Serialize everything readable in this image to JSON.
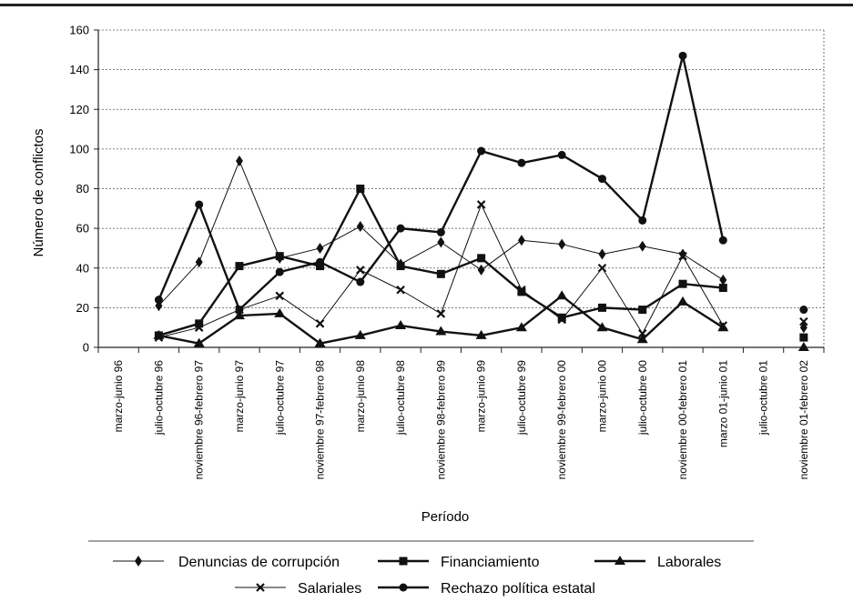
{
  "chart_data": {
    "type": "line",
    "title": "",
    "xlabel": "Período",
    "ylabel": "Número de conflictos",
    "ylim": [
      0,
      160
    ],
    "yticks": [
      0,
      20,
      40,
      60,
      80,
      100,
      120,
      140,
      160
    ],
    "grid": "horizontal dotted",
    "legend_position": "bottom",
    "categories": [
      "marzo-junio 96",
      "julio-octubre 96",
      "noviembre 96-febrero 97",
      "marzo-junio 97",
      "julio-octubre 97",
      "noviembre 97-febrero 98",
      "marzo-junio 98",
      "julio-octubre 98",
      "noviembre 98-febrero 99",
      "marzo-junio 99",
      "julio-octubre 99",
      "noviembre 99-febrero 00",
      "marzo-junio 00",
      "julio-octubre 00",
      "noviembre 00-febrero 01",
      "marzo 01-junio 01",
      "julio-octubre 01",
      "noviembre 01-febrero 02"
    ],
    "series": [
      {
        "name": "Denuncias de corrupción",
        "marker": "diamond",
        "line": "thin",
        "values": [
          null,
          21,
          43,
          94,
          45,
          50,
          61,
          42,
          53,
          39,
          54,
          52,
          47,
          51,
          47,
          34,
          null,
          10
        ]
      },
      {
        "name": "Financiamiento",
        "marker": "square",
        "line": "thick",
        "values": [
          null,
          6,
          12,
          41,
          46,
          41,
          80,
          41,
          37,
          45,
          28,
          15,
          20,
          19,
          32,
          30,
          null,
          5
        ]
      },
      {
        "name": "Laborales",
        "marker": "triangle",
        "line": "thick",
        "values": [
          null,
          6,
          2,
          16,
          17,
          2,
          6,
          11,
          8,
          6,
          10,
          26,
          10,
          4,
          23,
          10,
          null,
          0
        ]
      },
      {
        "name": "Salariales",
        "marker": "x",
        "line": "thin",
        "values": [
          null,
          5,
          10,
          19,
          26,
          12,
          39,
          29,
          17,
          72,
          29,
          14,
          40,
          7,
          46,
          11,
          null,
          13
        ]
      },
      {
        "name": "Rechazo política estatal",
        "marker": "circle",
        "line": "thick",
        "values": [
          null,
          24,
          72,
          19,
          38,
          43,
          33,
          60,
          58,
          99,
          93,
          97,
          85,
          64,
          147,
          54,
          null,
          19
        ]
      }
    ]
  }
}
